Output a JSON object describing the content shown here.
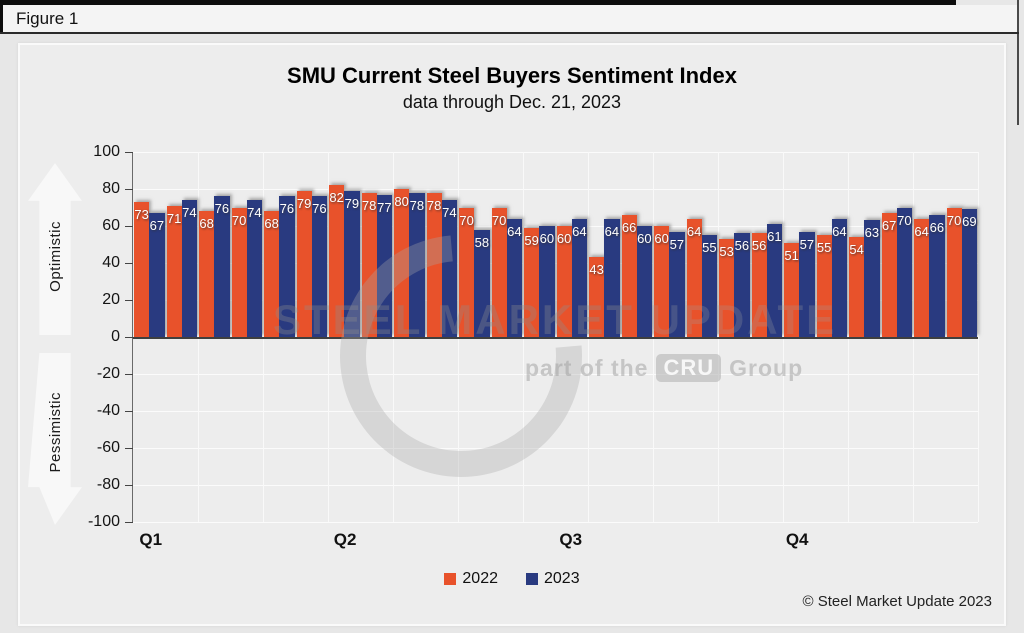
{
  "window": {
    "figure_label": "Figure 1"
  },
  "chart_data": {
    "type": "bar",
    "title": "SMU Current Steel Buyers Sentiment Index",
    "subtitle": "data through Dec. 21, 2023",
    "ylim": [
      -100,
      100
    ],
    "yticks": [
      100,
      80,
      60,
      40,
      20,
      0,
      -20,
      -40,
      -60,
      -80,
      -100
    ],
    "grid": true,
    "vertical_grid_divisions": 13,
    "axis_annotations": {
      "positive": "Optimistic",
      "negative": "Pessimistic"
    },
    "x_axis_quarters": [
      {
        "label": "Q1",
        "pos_pct": 2.1
      },
      {
        "label": "Q2",
        "pos_pct": 25.1
      },
      {
        "label": "Q3",
        "pos_pct": 51.8
      },
      {
        "label": "Q4",
        "pos_pct": 78.6
      }
    ],
    "legend_position": "bottom-center",
    "series": [
      {
        "name": "2022",
        "color": "#E8522B",
        "values": [
          73,
          71,
          68,
          70,
          68,
          79,
          82,
          78,
          80,
          78,
          70,
          70,
          59,
          60,
          43,
          66,
          60,
          64,
          53,
          56,
          51,
          55,
          54,
          67,
          64,
          70
        ]
      },
      {
        "name": "2023",
        "color": "#293A80",
        "values": [
          67,
          74,
          76,
          74,
          76,
          76,
          79,
          77,
          78,
          74,
          58,
          64,
          60,
          64,
          64,
          60,
          57,
          55,
          56,
          61,
          57,
          64,
          63,
          70,
          66,
          69
        ]
      }
    ]
  },
  "watermark": {
    "brand_bold": "STEEL MARKET",
    "brand_light": " UPDATE",
    "sub_prefix": "part of the",
    "sub_box": "CRU",
    "sub_suffix": "Group"
  },
  "footer": {
    "copyright": "© Steel Market Update 2023"
  }
}
